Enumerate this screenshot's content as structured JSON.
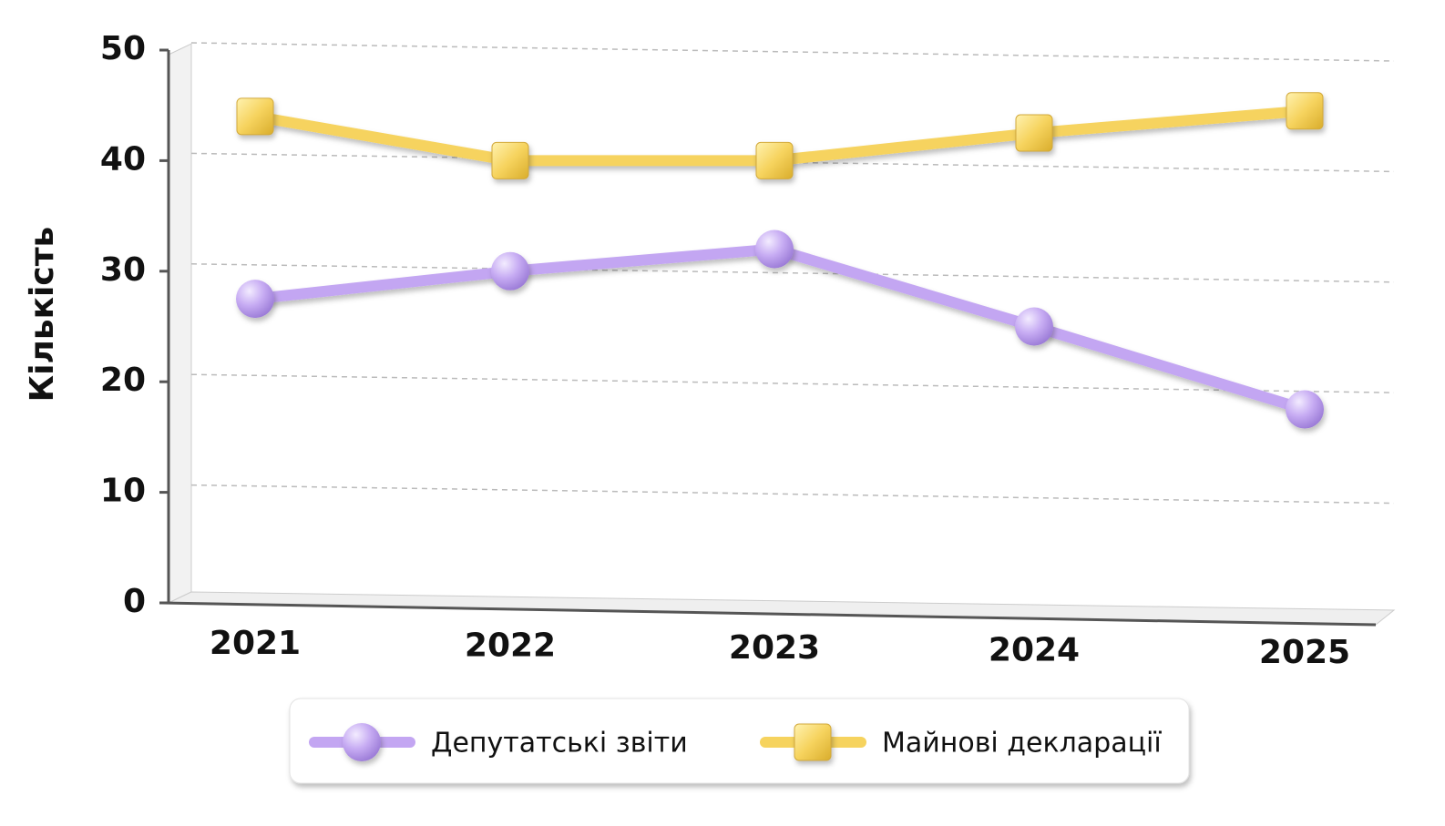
{
  "chart_data": {
    "type": "line",
    "y_label": "Кількість",
    "categories": [
      "2021",
      "2022",
      "2023",
      "2024",
      "2025"
    ],
    "series": [
      {
        "name": "Депутатські звіти",
        "color": "#c3a6f2",
        "marker": "circle",
        "values": [
          27.5,
          30,
          32,
          25,
          17.5
        ]
      },
      {
        "name": "Майнові декларації",
        "color": "#f6d35e",
        "marker": "square",
        "values": [
          44,
          40,
          40,
          42.5,
          44.5
        ]
      }
    ],
    "ylim": [
      0,
      50
    ],
    "yticks": [
      0,
      10,
      20,
      30,
      40,
      50
    ],
    "grid": true
  }
}
